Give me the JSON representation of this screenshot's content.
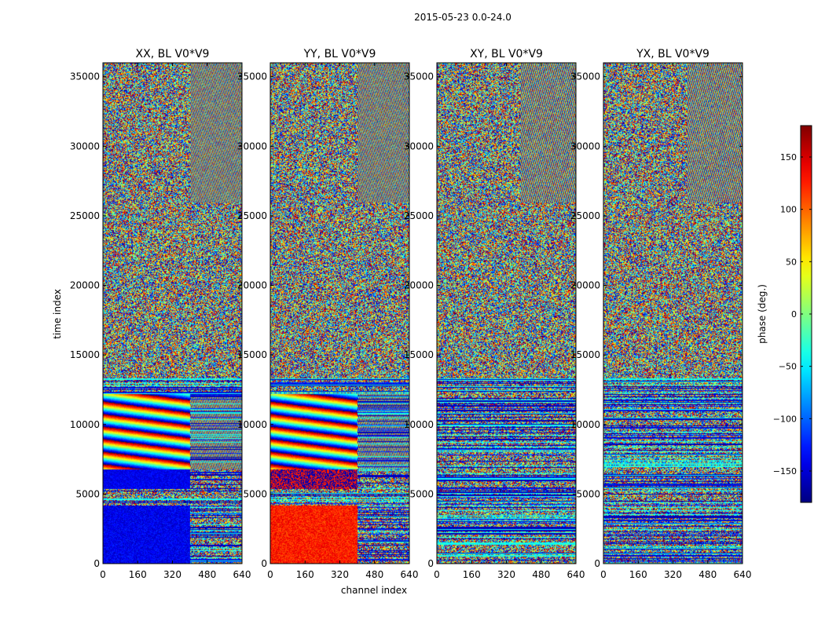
{
  "chart_data": {
    "type": "heatmap",
    "suptitle": "2015-05-23 0.0-24.0",
    "xlabel": "channel index",
    "ylabel": "time index",
    "xlim": [
      0,
      640
    ],
    "ylim": [
      0,
      36000
    ],
    "xticks": [
      0,
      160,
      320,
      480,
      640
    ],
    "xtick_labels": [
      "0",
      "160",
      "320",
      "480",
      "640"
    ],
    "yticks": [
      0,
      5000,
      10000,
      15000,
      20000,
      25000,
      30000,
      35000
    ],
    "ytick_labels": [
      "0",
      "5000",
      "10000",
      "15000",
      "20000",
      "25000",
      "30000",
      "35000"
    ],
    "colormap": "jet",
    "colorbar": {
      "label": "phase (deg.)",
      "range": [
        -180,
        180
      ],
      "ticks": [
        -150,
        -100,
        -50,
        0,
        50,
        100,
        150
      ],
      "tick_labels": [
        "−150",
        "−100",
        "−50",
        "0",
        "50",
        "100",
        "150"
      ]
    },
    "panels": [
      {
        "title": "XX, BL V0*V9",
        "pattern": "XX"
      },
      {
        "title": "YY, BL V0*V9",
        "pattern": "YY"
      },
      {
        "title": "XY, BL V0*V9",
        "pattern": "XY"
      },
      {
        "title": "YX, BL V0*V9",
        "pattern": "YX"
      }
    ]
  }
}
